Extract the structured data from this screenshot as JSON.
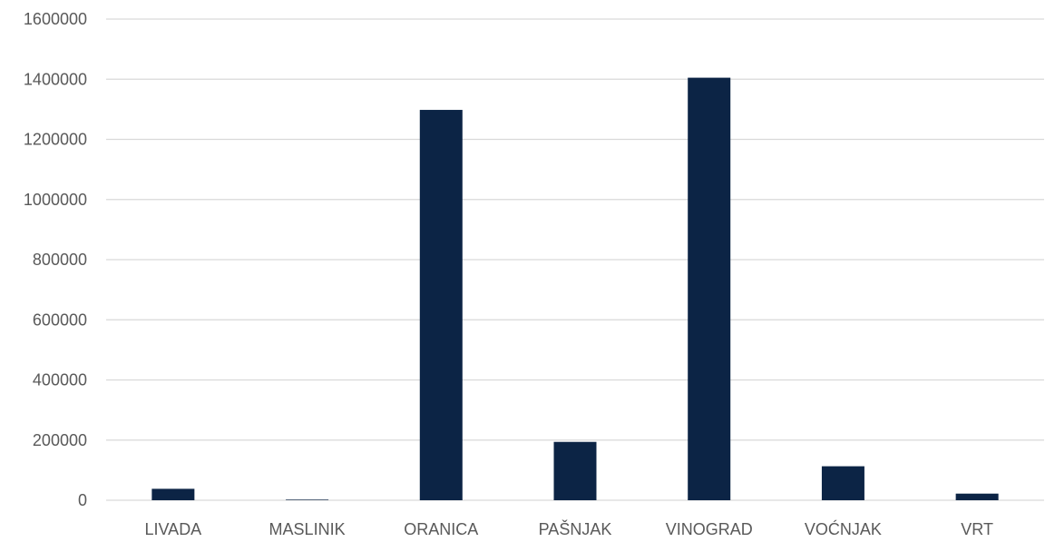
{
  "chart_data": {
    "type": "bar",
    "categories": [
      "LIVADA",
      "MASLINIK",
      "ORANICA",
      "PAŠNJAK",
      "VINOGRAD",
      "VOĆNJAK",
      "VRT"
    ],
    "values": [
      38000,
      2000,
      1298000,
      194000,
      1405000,
      113000,
      22000
    ],
    "ylim": [
      0,
      1600000
    ],
    "yticks": [
      0,
      200000,
      400000,
      600000,
      800000,
      1000000,
      1200000,
      1400000,
      1600000
    ],
    "grid": true,
    "legend": "none"
  },
  "colors": {
    "bar": "#0c2445",
    "grid": "#d9d9d9",
    "text": "#595959"
  }
}
